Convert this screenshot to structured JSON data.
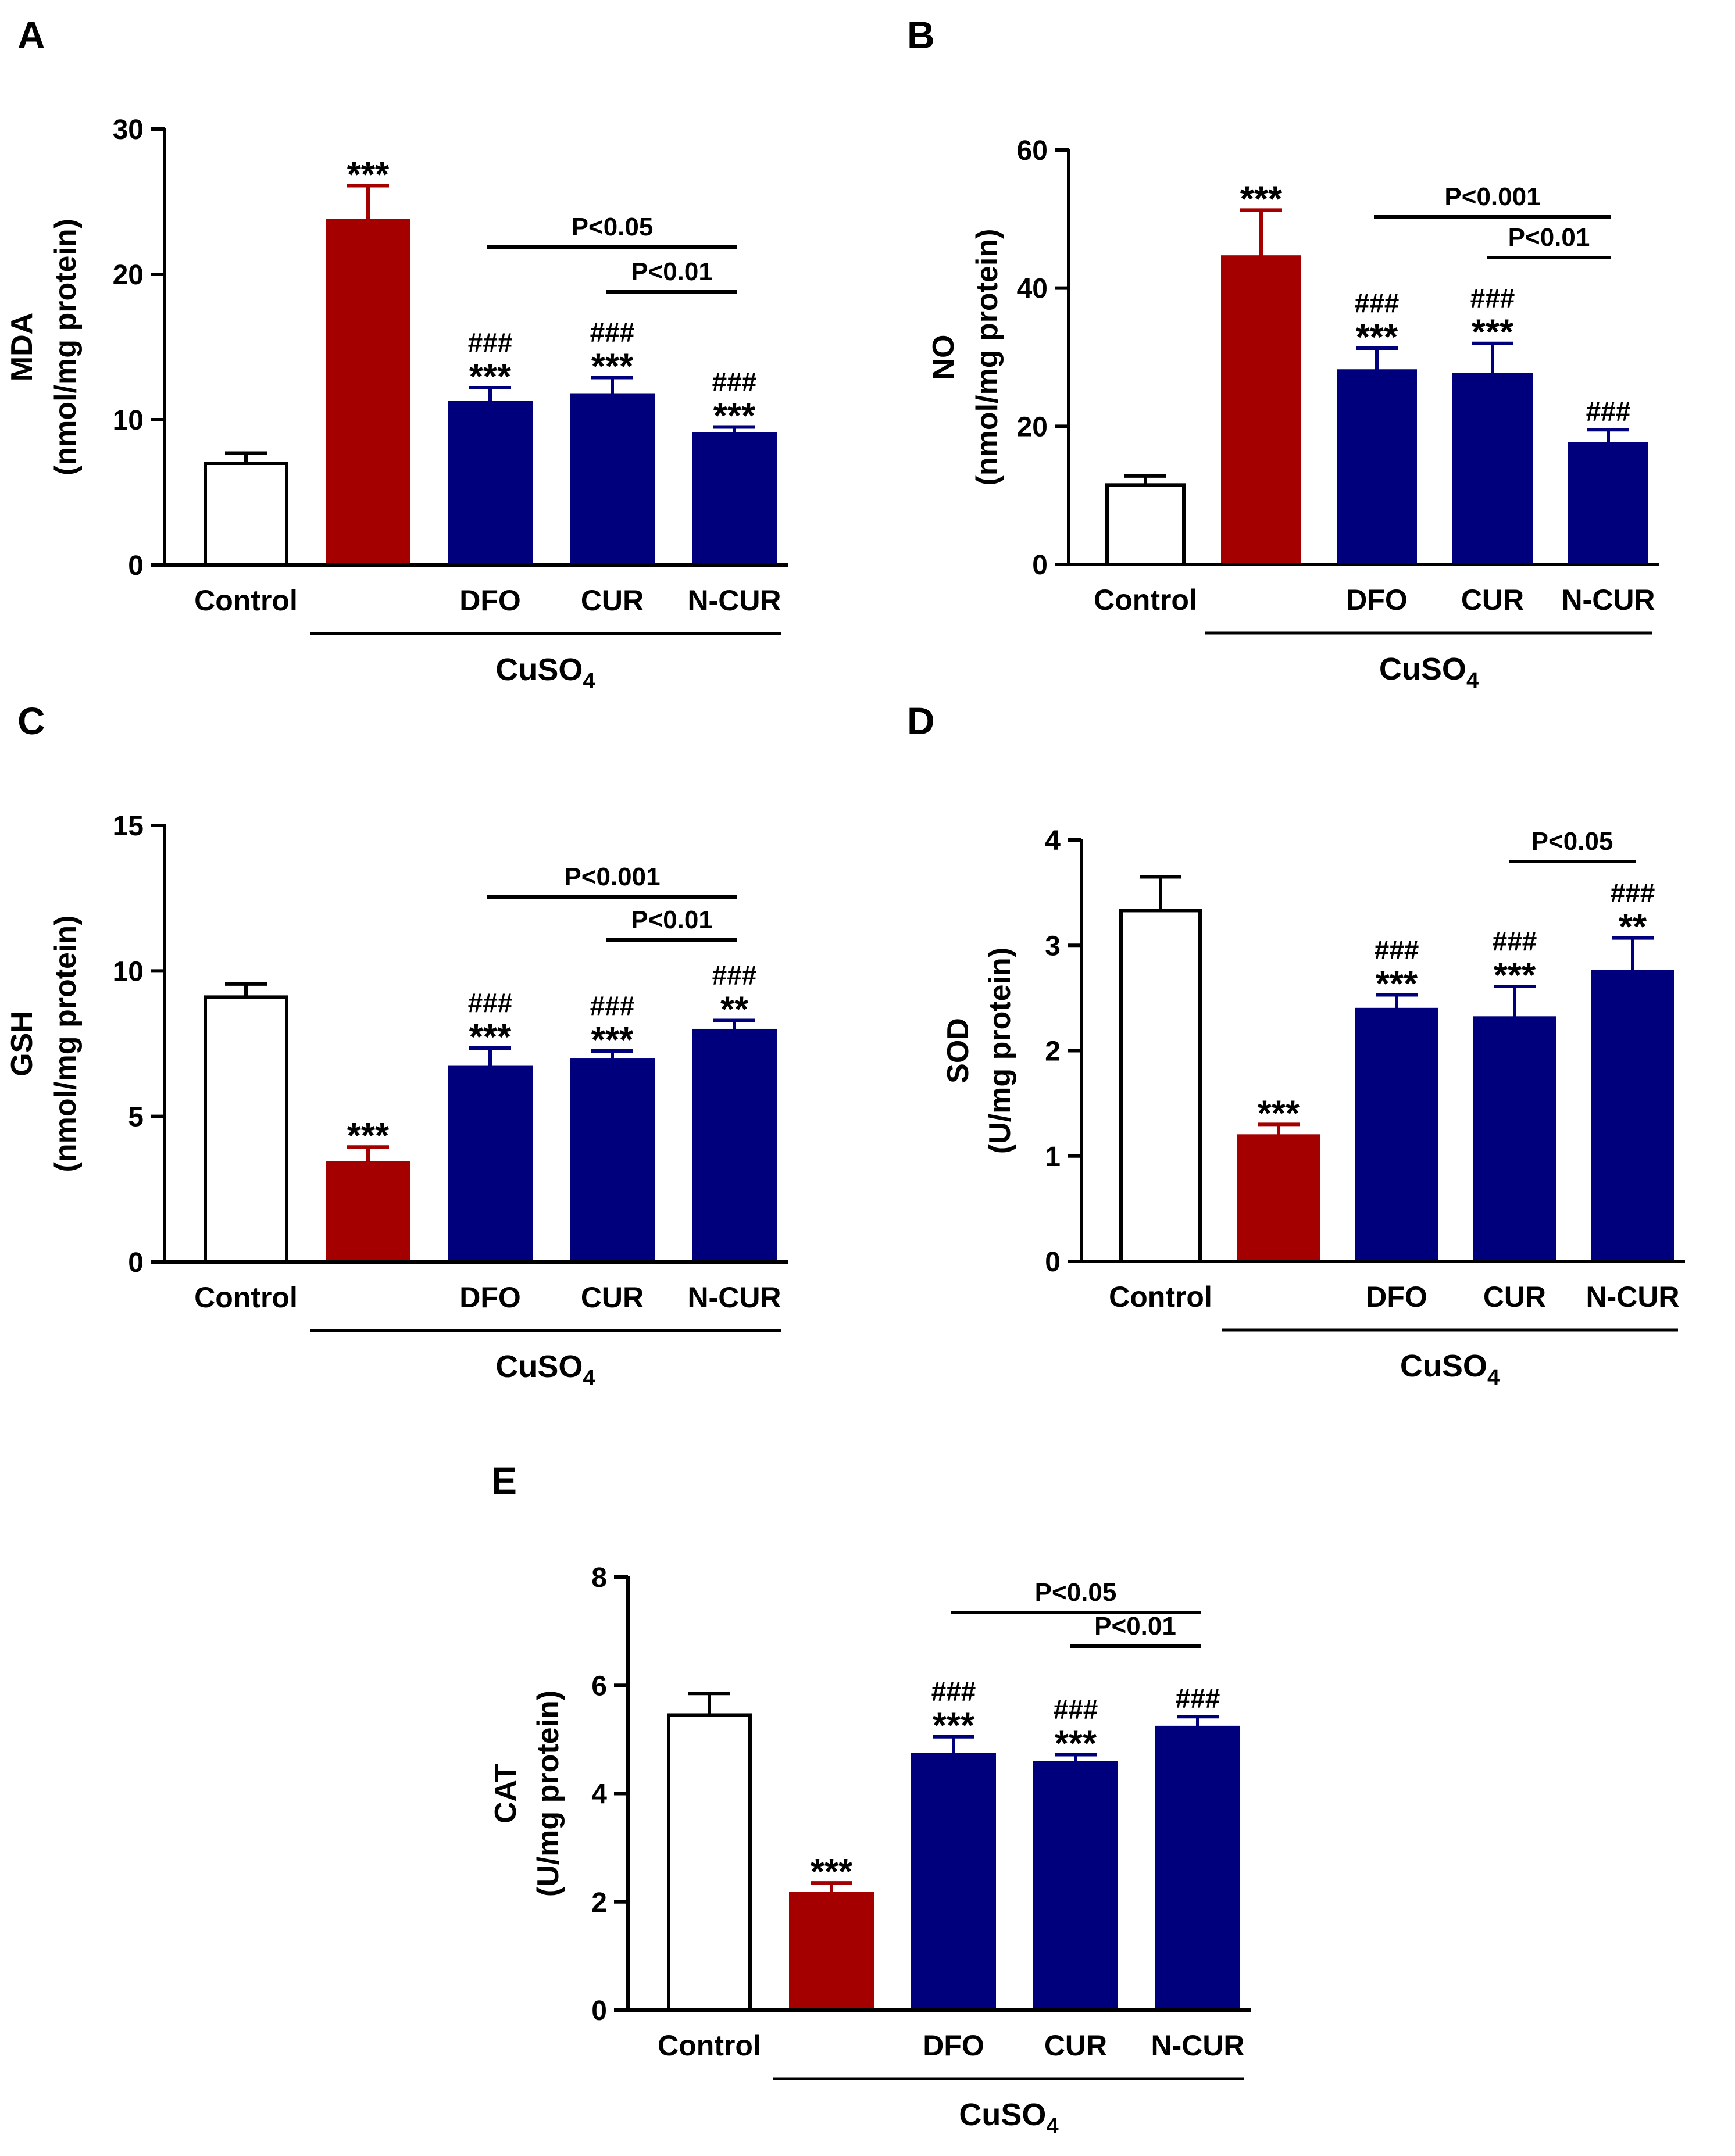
{
  "colors": {
    "control": "#ffffff",
    "cuso4": "#a50000",
    "treatment": "#00007d",
    "axis": "#000000"
  },
  "chart_data": [
    {
      "panel": "A",
      "type": "bar",
      "title": "",
      "ylabel": "MDA",
      "ylabel_unit": "(nmol/mg protein)",
      "ylim": [
        0,
        30
      ],
      "yticks": [
        0,
        10,
        20,
        30
      ],
      "categories": [
        "Control",
        "",
        "DFO",
        "CUR",
        "N-CUR"
      ],
      "group_label": "CuSO",
      "group_label_sub": "4",
      "values": [
        7,
        23.7,
        11.2,
        11.7,
        9
      ],
      "errors": [
        0.7,
        2.4,
        1,
        1.2,
        0.5
      ],
      "annotations": [
        [],
        [
          "***"
        ],
        [
          "###",
          "***"
        ],
        [
          "###",
          "***"
        ],
        [
          "###",
          "***"
        ]
      ],
      "brackets": [
        {
          "from": 2,
          "to": 4,
          "label": "P<0.05"
        },
        {
          "from": 3,
          "to": 4,
          "label": "P<0.01"
        }
      ]
    },
    {
      "panel": "B",
      "type": "bar",
      "title": "",
      "ylabel": "NO",
      "ylabel_unit": "(nmol/mg protein)",
      "ylim": [
        0,
        60
      ],
      "yticks": [
        0,
        20,
        40,
        60
      ],
      "categories": [
        "Control",
        "",
        "DFO",
        "CUR",
        "N-CUR"
      ],
      "group_label": "CuSO",
      "group_label_sub": "4",
      "values": [
        11.5,
        44.5,
        28,
        27.5,
        17.5
      ],
      "errors": [
        1.3,
        6.8,
        3.3,
        4.5,
        2
      ],
      "annotations": [
        [],
        [
          "***"
        ],
        [
          "###",
          "***"
        ],
        [
          "###",
          "***"
        ],
        [
          "###"
        ]
      ],
      "brackets": [
        {
          "from": 2,
          "to": 4,
          "label": "P<0.001"
        },
        {
          "from": 3,
          "to": 4,
          "label": "P<0.01"
        }
      ]
    },
    {
      "panel": "C",
      "type": "bar",
      "title": "",
      "ylabel": "GSH",
      "ylabel_unit": "(nmol/mg protein)",
      "ylim": [
        0,
        15
      ],
      "yticks": [
        0,
        5,
        10,
        15
      ],
      "categories": [
        "Control",
        "",
        "DFO",
        "CUR",
        "N-CUR"
      ],
      "group_label": "CuSO",
      "group_label_sub": "4",
      "values": [
        9.1,
        3.4,
        6.7,
        6.95,
        7.95
      ],
      "errors": [
        0.45,
        0.55,
        0.65,
        0.3,
        0.35
      ],
      "annotations": [
        [],
        [
          "***"
        ],
        [
          "###",
          "***"
        ],
        [
          "###",
          "***"
        ],
        [
          "###",
          "**"
        ]
      ],
      "brackets": [
        {
          "from": 2,
          "to": 4,
          "label": "P<0.001"
        },
        {
          "from": 3,
          "to": 4,
          "label": "P<0.01"
        }
      ]
    },
    {
      "panel": "D",
      "type": "bar",
      "title": "",
      "ylabel": "SOD",
      "ylabel_unit": "(U/mg protein)",
      "ylim": [
        0,
        4
      ],
      "yticks": [
        0,
        1,
        2,
        3,
        4
      ],
      "categories": [
        "Control",
        "",
        "DFO",
        "CUR",
        "N-CUR"
      ],
      "group_label": "CuSO",
      "group_label_sub": "4",
      "values": [
        3.33,
        1.19,
        2.39,
        2.31,
        2.75
      ],
      "errors": [
        0.32,
        0.11,
        0.14,
        0.3,
        0.32
      ],
      "annotations": [
        [],
        [
          "***"
        ],
        [
          "###",
          "***"
        ],
        [
          "###",
          "***"
        ],
        [
          "###",
          "**"
        ]
      ],
      "brackets": [
        {
          "from": 3,
          "to": 4,
          "label": "P<0.05"
        }
      ]
    },
    {
      "panel": "E",
      "type": "bar",
      "title": "",
      "ylabel": "CAT",
      "ylabel_unit": "(U/mg protein)",
      "ylim": [
        0,
        8
      ],
      "yticks": [
        0,
        2,
        4,
        6,
        8
      ],
      "categories": [
        "Control",
        "",
        "DFO",
        "CUR",
        "N-CUR"
      ],
      "group_label": "CuSO",
      "group_label_sub": "4",
      "values": [
        5.45,
        2.15,
        4.72,
        4.57,
        5.22
      ],
      "errors": [
        0.4,
        0.2,
        0.33,
        0.15,
        0.2
      ],
      "annotations": [
        [],
        [
          "***"
        ],
        [
          "###",
          "***"
        ],
        [
          "###",
          "***"
        ],
        [
          "###"
        ]
      ],
      "brackets": [
        {
          "from": 2,
          "to": 4,
          "label": "P<0.05"
        },
        {
          "from": 3,
          "to": 4,
          "label": "P<0.01"
        }
      ]
    }
  ]
}
